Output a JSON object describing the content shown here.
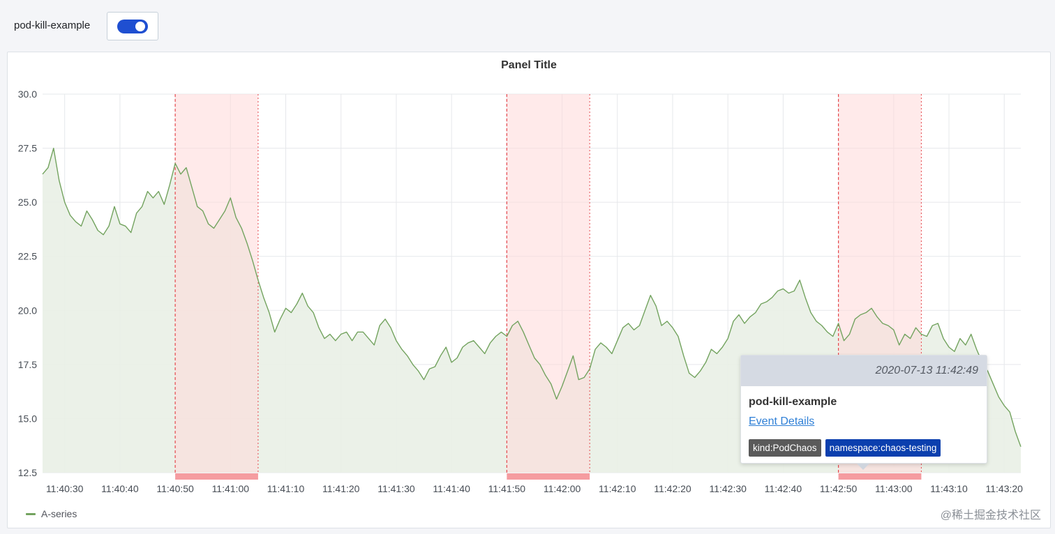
{
  "variable": {
    "label": "pod-kill-example",
    "enabled": true
  },
  "panel": {
    "title": "Panel Title"
  },
  "colors": {
    "series": "#73a35f",
    "series_fill": "#e9f0e5",
    "annotation_fill": "#ffd9d9",
    "annotation_line": "#e5484d",
    "annotation_marker": "#f59ca0",
    "grid": "#e6e8eb",
    "toggle": "#1f4fd1"
  },
  "chart_data": {
    "type": "area",
    "xlabel": "",
    "ylabel": "",
    "ylim": [
      12.5,
      30.0
    ],
    "yticks": [
      "30.0",
      "27.5",
      "25.0",
      "22.5",
      "20.0",
      "17.5",
      "15.0",
      "12.5"
    ],
    "ytick_values": [
      30.0,
      27.5,
      25.0,
      22.5,
      20.0,
      17.5,
      15.0,
      12.5
    ],
    "xlim_seconds": [
      1226,
      1403
    ],
    "xticks": [
      "11:40:30",
      "11:40:40",
      "11:40:50",
      "11:41:00",
      "11:41:10",
      "11:41:20",
      "11:41:30",
      "11:41:40",
      "11:41:50",
      "11:42:00",
      "11:42:10",
      "11:42:20",
      "11:42:30",
      "11:42:40",
      "11:42:50",
      "11:43:00",
      "11:43:10",
      "11:43:20"
    ],
    "xtick_seconds": [
      1230,
      1240,
      1250,
      1260,
      1270,
      1280,
      1290,
      1300,
      1310,
      1320,
      1330,
      1340,
      1350,
      1360,
      1370,
      1380,
      1390,
      1400
    ],
    "legend": "bottom-left",
    "grid": true,
    "series": [
      {
        "name": "A-series",
        "points": [
          [
            "11:40:26",
            26.3
          ],
          [
            "11:40:27",
            26.6
          ],
          [
            "11:40:28",
            27.5
          ],
          [
            "11:40:29",
            26.0
          ],
          [
            "11:40:30",
            25.0
          ],
          [
            "11:40:31",
            24.4
          ],
          [
            "11:40:32",
            24.1
          ],
          [
            "11:40:33",
            23.9
          ],
          [
            "11:40:34",
            24.6
          ],
          [
            "11:40:35",
            24.2
          ],
          [
            "11:40:36",
            23.7
          ],
          [
            "11:40:37",
            23.5
          ],
          [
            "11:40:38",
            23.9
          ],
          [
            "11:40:39",
            24.8
          ],
          [
            "11:40:40",
            24.0
          ],
          [
            "11:40:41",
            23.9
          ],
          [
            "11:40:42",
            23.6
          ],
          [
            "11:40:43",
            24.5
          ],
          [
            "11:40:44",
            24.8
          ],
          [
            "11:40:45",
            25.5
          ],
          [
            "11:40:46",
            25.2
          ],
          [
            "11:40:47",
            25.5
          ],
          [
            "11:40:48",
            24.9
          ],
          [
            "11:40:49",
            25.8
          ],
          [
            "11:40:50",
            26.8
          ],
          [
            "11:40:51",
            26.3
          ],
          [
            "11:40:52",
            26.6
          ],
          [
            "11:40:53",
            25.7
          ],
          [
            "11:40:54",
            24.8
          ],
          [
            "11:40:55",
            24.6
          ],
          [
            "11:40:56",
            24.0
          ],
          [
            "11:40:57",
            23.8
          ],
          [
            "11:40:58",
            24.2
          ],
          [
            "11:40:59",
            24.6
          ],
          [
            "11:41:00",
            25.2
          ],
          [
            "11:41:01",
            24.3
          ],
          [
            "11:41:02",
            23.8
          ],
          [
            "11:41:03",
            23.1
          ],
          [
            "11:41:04",
            22.3
          ],
          [
            "11:41:05",
            21.4
          ],
          [
            "11:41:06",
            20.6
          ],
          [
            "11:41:07",
            19.9
          ],
          [
            "11:41:08",
            19.0
          ],
          [
            "11:41:09",
            19.6
          ],
          [
            "11:41:10",
            20.1
          ],
          [
            "11:41:11",
            19.9
          ],
          [
            "11:41:12",
            20.3
          ],
          [
            "11:41:13",
            20.8
          ],
          [
            "11:41:14",
            20.2
          ],
          [
            "11:41:15",
            19.9
          ],
          [
            "11:41:16",
            19.2
          ],
          [
            "11:41:17",
            18.7
          ],
          [
            "11:41:18",
            18.9
          ],
          [
            "11:41:19",
            18.6
          ],
          [
            "11:41:20",
            18.9
          ],
          [
            "11:41:21",
            19.0
          ],
          [
            "11:41:22",
            18.6
          ],
          [
            "11:41:23",
            19.0
          ],
          [
            "11:41:24",
            19.0
          ],
          [
            "11:41:25",
            18.7
          ],
          [
            "11:41:26",
            18.4
          ],
          [
            "11:41:27",
            19.3
          ],
          [
            "11:41:28",
            19.6
          ],
          [
            "11:41:29",
            19.2
          ],
          [
            "11:41:30",
            18.6
          ],
          [
            "11:41:31",
            18.2
          ],
          [
            "11:41:32",
            17.9
          ],
          [
            "11:41:33",
            17.5
          ],
          [
            "11:41:34",
            17.2
          ],
          [
            "11:41:35",
            16.8
          ],
          [
            "11:41:36",
            17.3
          ],
          [
            "11:41:37",
            17.4
          ],
          [
            "11:41:38",
            17.9
          ],
          [
            "11:41:39",
            18.3
          ],
          [
            "11:41:40",
            17.6
          ],
          [
            "11:41:41",
            17.8
          ],
          [
            "11:41:42",
            18.3
          ],
          [
            "11:41:43",
            18.5
          ],
          [
            "11:41:44",
            18.6
          ],
          [
            "11:41:45",
            18.3
          ],
          [
            "11:41:46",
            18.0
          ],
          [
            "11:41:47",
            18.5
          ],
          [
            "11:41:48",
            18.8
          ],
          [
            "11:41:49",
            19.0
          ],
          [
            "11:41:50",
            18.8
          ],
          [
            "11:41:51",
            19.3
          ],
          [
            "11:41:52",
            19.5
          ],
          [
            "11:41:53",
            19.0
          ],
          [
            "11:41:54",
            18.4
          ],
          [
            "11:41:55",
            17.8
          ],
          [
            "11:41:56",
            17.5
          ],
          [
            "11:41:57",
            17.0
          ],
          [
            "11:41:58",
            16.6
          ],
          [
            "11:41:59",
            15.9
          ],
          [
            "11:42:00",
            16.5
          ],
          [
            "11:42:01",
            17.2
          ],
          [
            "11:42:02",
            17.9
          ],
          [
            "11:42:03",
            16.8
          ],
          [
            "11:42:04",
            16.9
          ],
          [
            "11:42:05",
            17.3
          ],
          [
            "11:42:06",
            18.2
          ],
          [
            "11:42:07",
            18.5
          ],
          [
            "11:42:08",
            18.3
          ],
          [
            "11:42:09",
            18.0
          ],
          [
            "11:42:10",
            18.6
          ],
          [
            "11:42:11",
            19.2
          ],
          [
            "11:42:12",
            19.4
          ],
          [
            "11:42:13",
            19.1
          ],
          [
            "11:42:14",
            19.3
          ],
          [
            "11:42:15",
            20.0
          ],
          [
            "11:42:16",
            20.7
          ],
          [
            "11:42:17",
            20.2
          ],
          [
            "11:42:18",
            19.3
          ],
          [
            "11:42:19",
            19.5
          ],
          [
            "11:42:20",
            19.2
          ],
          [
            "11:42:21",
            18.8
          ],
          [
            "11:42:22",
            17.9
          ],
          [
            "11:42:23",
            17.1
          ],
          [
            "11:42:24",
            16.9
          ],
          [
            "11:42:25",
            17.2
          ],
          [
            "11:42:26",
            17.6
          ],
          [
            "11:42:27",
            18.2
          ],
          [
            "11:42:28",
            18.0
          ],
          [
            "11:42:29",
            18.3
          ],
          [
            "11:42:30",
            18.7
          ],
          [
            "11:42:31",
            19.5
          ],
          [
            "11:42:32",
            19.8
          ],
          [
            "11:42:33",
            19.4
          ],
          [
            "11:42:34",
            19.7
          ],
          [
            "11:42:35",
            19.9
          ],
          [
            "11:42:36",
            20.3
          ],
          [
            "11:42:37",
            20.4
          ],
          [
            "11:42:38",
            20.6
          ],
          [
            "11:42:39",
            20.9
          ],
          [
            "11:42:40",
            21.0
          ],
          [
            "11:42:41",
            20.8
          ],
          [
            "11:42:42",
            20.9
          ],
          [
            "11:42:43",
            21.4
          ],
          [
            "11:42:44",
            20.6
          ],
          [
            "11:42:45",
            19.9
          ],
          [
            "11:42:46",
            19.5
          ],
          [
            "11:42:47",
            19.3
          ],
          [
            "11:42:48",
            19.0
          ],
          [
            "11:42:49",
            18.8
          ],
          [
            "11:42:50",
            19.4
          ],
          [
            "11:42:51",
            18.6
          ],
          [
            "11:42:52",
            18.9
          ],
          [
            "11:42:53",
            19.6
          ],
          [
            "11:42:54",
            19.8
          ],
          [
            "11:42:55",
            19.9
          ],
          [
            "11:42:56",
            20.1
          ],
          [
            "11:42:57",
            19.7
          ],
          [
            "11:42:58",
            19.4
          ],
          [
            "11:42:59",
            19.3
          ],
          [
            "11:43:00",
            19.1
          ],
          [
            "11:43:01",
            18.4
          ],
          [
            "11:43:02",
            18.9
          ],
          [
            "11:43:03",
            18.7
          ],
          [
            "11:43:04",
            19.2
          ],
          [
            "11:43:05",
            18.9
          ],
          [
            "11:43:06",
            18.8
          ],
          [
            "11:43:07",
            19.3
          ],
          [
            "11:43:08",
            19.4
          ],
          [
            "11:43:09",
            18.7
          ],
          [
            "11:43:10",
            18.3
          ],
          [
            "11:43:11",
            18.1
          ],
          [
            "11:43:12",
            18.7
          ],
          [
            "11:43:13",
            18.4
          ],
          [
            "11:43:14",
            18.9
          ],
          [
            "11:43:15",
            18.2
          ],
          [
            "11:43:16",
            17.6
          ],
          [
            "11:43:17",
            17.2
          ],
          [
            "11:43:18",
            16.6
          ],
          [
            "11:43:19",
            16.0
          ],
          [
            "11:43:20",
            15.6
          ],
          [
            "11:43:21",
            15.3
          ],
          [
            "11:43:22",
            14.4
          ],
          [
            "11:43:23",
            13.7
          ]
        ]
      }
    ],
    "annotations": [
      {
        "start": "11:40:50",
        "end": "11:41:05"
      },
      {
        "start": "11:41:50",
        "end": "11:42:05"
      },
      {
        "start": "11:42:50",
        "end": "11:43:05"
      }
    ]
  },
  "tooltip": {
    "time": "2020-07-13 11:42:49",
    "title": "pod-kill-example",
    "link": "Event Details",
    "tags": [
      "kind:PodChaos",
      "namespace:chaos-testing"
    ]
  },
  "watermark": "@稀土掘金技术社区"
}
